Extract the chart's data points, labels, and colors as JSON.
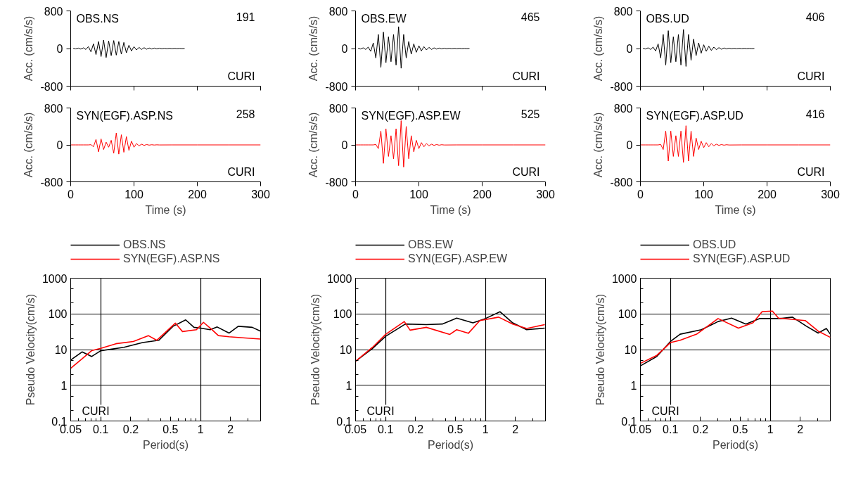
{
  "chart_data": [
    {
      "type": "line",
      "ylabel": "Acc. (cm/s/s)",
      "annotations": [
        "OBS.NS",
        "191",
        "CURI"
      ],
      "xlim": [
        0,
        300
      ],
      "ylim": [
        -800,
        800
      ],
      "xticks": [
        0,
        100,
        200,
        300
      ],
      "yticks": [
        -800,
        0,
        800
      ],
      "tick_labels": "y",
      "series": [
        {
          "color": "#000000",
          "x": [
            4,
            8,
            12,
            16,
            20,
            24,
            28,
            32,
            36,
            40,
            44,
            48,
            52,
            56,
            60,
            64,
            68,
            72,
            76,
            80,
            84,
            88,
            92,
            96,
            100,
            104,
            108,
            112,
            116,
            120,
            124,
            128,
            132,
            136,
            140,
            144,
            148,
            152,
            156,
            160,
            164,
            168,
            172,
            176,
            180
          ],
          "values": [
            5,
            -8,
            10,
            -12,
            15,
            -20,
            40,
            -70,
            100,
            -130,
            150,
            -170,
            180,
            -191,
            160,
            -150,
            170,
            -140,
            150,
            -120,
            130,
            -90,
            70,
            -50,
            40,
            -30,
            25,
            -20,
            18,
            -15,
            12,
            -10,
            10,
            -8,
            8,
            -6,
            6,
            -5,
            5,
            -4,
            4,
            -3,
            3,
            -2,
            2
          ]
        }
      ]
    },
    {
      "type": "line",
      "ylabel": "Acc. (cm/s/s)",
      "annotations": [
        "OBS.EW",
        "465",
        "CURI"
      ],
      "xlim": [
        0,
        300
      ],
      "ylim": [
        -800,
        800
      ],
      "xticks": [
        0,
        100,
        200,
        300
      ],
      "yticks": [
        -800,
        0,
        800
      ],
      "tick_labels": "y",
      "series": [
        {
          "color": "#000000",
          "x": [
            4,
            8,
            12,
            16,
            20,
            24,
            28,
            32,
            36,
            40,
            44,
            48,
            52,
            56,
            60,
            64,
            68,
            72,
            76,
            80,
            84,
            88,
            92,
            96,
            100,
            104,
            108,
            112,
            116,
            120,
            124,
            128,
            132,
            136,
            140,
            144,
            148,
            152,
            156,
            160,
            164,
            168,
            172,
            176,
            180
          ],
          "values": [
            5,
            -10,
            15,
            -20,
            30,
            -60,
            120,
            -200,
            300,
            -400,
            350,
            -300,
            250,
            -280,
            300,
            -350,
            465,
            -420,
            300,
            -200,
            150,
            -120,
            100,
            -80,
            60,
            -50,
            40,
            -30,
            25,
            -20,
            15,
            -12,
            10,
            -8,
            8,
            -6,
            6,
            -5,
            5,
            -4,
            4,
            -3,
            3,
            -2,
            2
          ]
        }
      ]
    },
    {
      "type": "line",
      "ylabel": "Acc. (cm/s/s)",
      "annotations": [
        "OBS.UD",
        "406",
        "CURI"
      ],
      "xlim": [
        0,
        300
      ],
      "ylim": [
        -800,
        800
      ],
      "xticks": [
        0,
        100,
        200,
        300
      ],
      "yticks": [
        -800,
        0,
        800
      ],
      "tick_labels": "y",
      "series": [
        {
          "color": "#000000",
          "x": [
            4,
            8,
            12,
            16,
            20,
            24,
            28,
            32,
            36,
            40,
            44,
            48,
            52,
            56,
            60,
            64,
            68,
            72,
            76,
            80,
            84,
            88,
            92,
            96,
            100,
            104,
            108,
            112,
            116,
            120,
            124,
            128,
            132,
            136,
            140,
            144,
            148,
            152,
            156,
            160,
            164,
            168,
            172,
            176,
            180
          ],
          "values": [
            5,
            -10,
            15,
            -20,
            30,
            -50,
            100,
            -200,
            300,
            -350,
            380,
            -300,
            250,
            -280,
            300,
            -350,
            406,
            -380,
            300,
            -250,
            200,
            -150,
            120,
            -100,
            80,
            -60,
            50,
            -40,
            30,
            -25,
            20,
            -15,
            12,
            -10,
            8,
            -6,
            6,
            -5,
            5,
            -4,
            4,
            -3,
            3,
            -2,
            2
          ]
        }
      ]
    },
    {
      "type": "line",
      "ylabel": "Acc. (cm/s/s)",
      "xlabel": "Time (s)",
      "annotations": [
        "SYN(EGF).ASP.NS",
        "258",
        "CURI"
      ],
      "xlim": [
        0,
        300
      ],
      "ylim": [
        -800,
        800
      ],
      "xticks": [
        0,
        100,
        200,
        300
      ],
      "yticks": [
        -800,
        0,
        800
      ],
      "series": [
        {
          "color": "#ff0000",
          "x": [
            0,
            4,
            8,
            12,
            16,
            20,
            24,
            28,
            32,
            36,
            40,
            44,
            48,
            52,
            56,
            60,
            64,
            68,
            72,
            76,
            80,
            84,
            88,
            92,
            96,
            100,
            104,
            108,
            112,
            116,
            120,
            124,
            128,
            132,
            136,
            140,
            160,
            200,
            250,
            300
          ],
          "values": [
            0,
            0,
            0,
            0,
            0,
            0,
            0,
            0,
            5,
            -40,
            120,
            -150,
            130,
            -100,
            60,
            -50,
            100,
            -180,
            258,
            -200,
            220,
            -160,
            180,
            -120,
            80,
            -50,
            30,
            -20,
            15,
            -10,
            8,
            -5,
            4,
            -3,
            2,
            -1,
            0,
            0,
            0,
            0
          ]
        }
      ]
    },
    {
      "type": "line",
      "ylabel": "Acc. (cm/s/s)",
      "xlabel": "Time (s)",
      "annotations": [
        "SYN(EGF).ASP.EW",
        "525",
        "CURI"
      ],
      "xlim": [
        0,
        300
      ],
      "ylim": [
        -800,
        800
      ],
      "xticks": [
        0,
        100,
        200,
        300
      ],
      "yticks": [
        -800,
        0,
        800
      ],
      "series": [
        {
          "color": "#ff0000",
          "x": [
            0,
            4,
            8,
            12,
            16,
            20,
            24,
            28,
            32,
            36,
            40,
            44,
            48,
            52,
            56,
            60,
            64,
            68,
            72,
            76,
            80,
            84,
            88,
            92,
            96,
            100,
            104,
            108,
            112,
            116,
            120,
            124,
            128,
            132,
            136,
            140,
            160,
            200,
            250,
            300
          ],
          "values": [
            0,
            0,
            0,
            0,
            0,
            0,
            0,
            0,
            10,
            -80,
            300,
            -400,
            350,
            -250,
            200,
            -300,
            350,
            -450,
            525,
            -480,
            400,
            -300,
            200,
            -150,
            100,
            -80,
            50,
            -40,
            30,
            -20,
            15,
            -10,
            8,
            -6,
            4,
            -2,
            0,
            0,
            0,
            0
          ]
        }
      ]
    },
    {
      "type": "line",
      "ylabel": "Acc. (cm/s/s)",
      "xlabel": "Time (s)",
      "annotations": [
        "SYN(EGF).ASP.UD",
        "416",
        "CURI"
      ],
      "xlim": [
        0,
        300
      ],
      "ylim": [
        -800,
        800
      ],
      "xticks": [
        0,
        100,
        200,
        300
      ],
      "yticks": [
        -800,
        0,
        800
      ],
      "series": [
        {
          "color": "#ff0000",
          "x": [
            0,
            4,
            8,
            12,
            16,
            20,
            24,
            28,
            32,
            36,
            40,
            44,
            48,
            52,
            56,
            60,
            64,
            68,
            72,
            76,
            80,
            84,
            88,
            92,
            96,
            100,
            104,
            108,
            112,
            116,
            120,
            124,
            128,
            132,
            136,
            140,
            160,
            200,
            250,
            300
          ],
          "values": [
            0,
            0,
            0,
            0,
            0,
            0,
            0,
            0,
            10,
            -100,
            300,
            -350,
            300,
            -250,
            200,
            -250,
            300,
            -380,
            416,
            -350,
            300,
            -250,
            150,
            -100,
            80,
            -60,
            50,
            -40,
            30,
            -20,
            15,
            -10,
            8,
            -6,
            4,
            -2,
            0,
            0,
            0,
            0
          ]
        }
      ]
    },
    {
      "type": "line",
      "log": "xy",
      "grid": true,
      "legend": "top",
      "ylabel": "Pseudo Velocity(cm/s)",
      "xlabel": "Period(s)",
      "annotations": [
        "CURI"
      ],
      "xlim": [
        0.05,
        4
      ],
      "ylim": [
        0.1,
        1000
      ],
      "xticks": [
        0.05,
        0.1,
        0.2,
        0.5,
        1,
        2
      ],
      "yticks": [
        0.1,
        1,
        10,
        100,
        1000
      ],
      "series": [
        {
          "name": "OBS.NS",
          "color": "#000000",
          "x": [
            0.05,
            0.065,
            0.081,
            0.1,
            0.171,
            0.263,
            0.383,
            0.53,
            0.71,
            0.86,
            1,
            1.25,
            1.47,
            1.93,
            2.39,
            3.3,
            3.98
          ],
          "values": [
            5.1,
            8.6,
            6.4,
            9.3,
            11.6,
            15.7,
            18.2,
            45,
            68,
            42,
            40,
            36,
            43,
            29,
            45,
            42,
            33
          ]
        },
        {
          "name": "SYN(EGF).ASP.NS",
          "color": "#ff0000",
          "x": [
            0.05,
            0.065,
            0.081,
            0.1,
            0.142,
            0.212,
            0.3,
            0.364,
            0.56,
            0.66,
            0.91,
            1.07,
            1.29,
            1.51,
            1.93,
            2.81,
            3.98
          ],
          "values": [
            3.0,
            5.5,
            9.3,
            10.8,
            14.6,
            16.9,
            24.6,
            18.2,
            55,
            32,
            36,
            58,
            37,
            24.6,
            22.9,
            21.2,
            19.7
          ]
        }
      ]
    },
    {
      "type": "line",
      "log": "xy",
      "grid": true,
      "legend": "top",
      "ylabel": "Pseudo Velocity(cm/s)",
      "xlabel": "Period(s)",
      "annotations": [
        "CURI"
      ],
      "xlim": [
        0.05,
        4
      ],
      "ylim": [
        0.1,
        1000
      ],
      "xticks": [
        0.05,
        0.1,
        0.2,
        0.5,
        1,
        2
      ],
      "yticks": [
        0.1,
        1,
        10,
        100,
        1000
      ],
      "series": [
        {
          "name": "OBS.EW",
          "color": "#000000",
          "x": [
            0.05,
            0.074,
            0.1,
            0.158,
            0.256,
            0.37,
            0.516,
            0.75,
            1,
            1.4,
            1.88,
            2.59,
            3.94
          ],
          "values": [
            4.7,
            10.8,
            23.6,
            52,
            50,
            52,
            76,
            56,
            74,
            115,
            56,
            36,
            40
          ]
        },
        {
          "name": "SYN(EGF).ASP.EW",
          "color": "#ff0000",
          "x": [
            0.05,
            0.074,
            0.1,
            0.154,
            0.176,
            0.256,
            0.44,
            0.516,
            0.675,
            0.88,
            1.36,
            1.88,
            2.59,
            3.94
          ],
          "values": [
            4.7,
            11.6,
            26.6,
            61,
            35,
            42,
            26.6,
            36,
            28.6,
            65,
            81,
            52,
            39,
            50
          ]
        }
      ]
    },
    {
      "type": "line",
      "log": "xy",
      "grid": true,
      "legend": "top",
      "ylabel": "Pseudo Velocity(cm/s)",
      "xlabel": "Period(s)",
      "annotations": [
        "CURI"
      ],
      "xlim": [
        0.05,
        4
      ],
      "ylim": [
        0.1,
        1000
      ],
      "xticks": [
        0.05,
        0.1,
        0.2,
        0.5,
        1,
        2
      ],
      "yticks": [
        0.1,
        1,
        10,
        100,
        1000
      ],
      "series": [
        {
          "name": "OBS.UD",
          "color": "#000000",
          "x": [
            0.05,
            0.073,
            0.1,
            0.125,
            0.204,
            0.3,
            0.41,
            0.57,
            0.78,
            1,
            1.27,
            1.67,
            2.31,
            3.02,
            3.65,
            4.0
          ],
          "values": [
            3.5,
            6.4,
            16.9,
            27,
            36,
            61,
            76,
            52,
            74,
            74,
            74,
            81,
            45,
            29,
            39,
            27
          ]
        },
        {
          "name": "SYN(EGF).ASP.UD",
          "color": "#ff0000",
          "x": [
            0.05,
            0.073,
            0.1,
            0.125,
            0.183,
            0.3,
            0.48,
            0.67,
            0.83,
            1.05,
            1.21,
            2.24,
            3.02,
            4.0
          ],
          "values": [
            4.1,
            6.9,
            15.7,
            18.2,
            27,
            74,
            40,
            56,
            116,
            120,
            76,
            65,
            33,
            22
          ]
        }
      ]
    }
  ]
}
